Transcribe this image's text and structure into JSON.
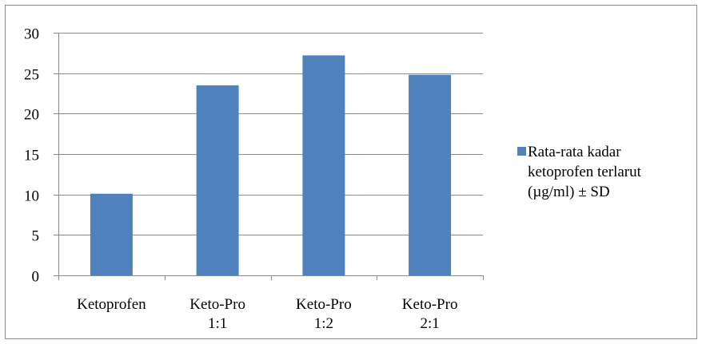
{
  "chart_data": {
    "type": "bar",
    "categories": [
      [
        "Ketoprofen"
      ],
      [
        "Keto-Pro",
        "1:1"
      ],
      [
        "Keto-Pro",
        "1:2"
      ],
      [
        "Keto-Pro",
        "2:1"
      ]
    ],
    "series": [
      {
        "name": [
          "Rata-rata kadar",
          "ketoprofen terlarut",
          "(µg/ml) ± SD"
        ],
        "values": [
          10.1,
          23.5,
          27.2,
          24.8
        ],
        "color": "#4f81bd"
      }
    ],
    "yticks": [
      0,
      5,
      10,
      15,
      20,
      25,
      30
    ],
    "ylim": [
      0,
      30
    ],
    "grid": true,
    "legend_position": "right"
  }
}
